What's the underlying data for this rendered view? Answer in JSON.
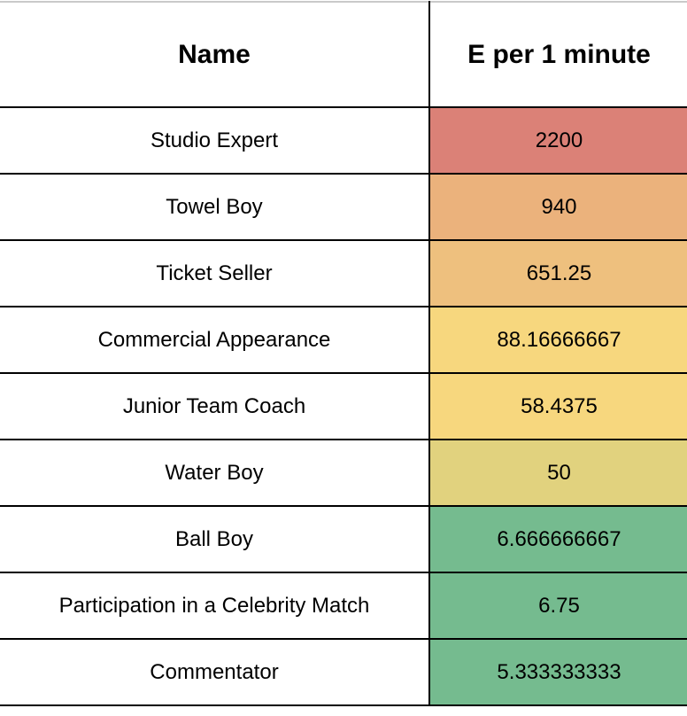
{
  "table": {
    "headers": {
      "name": "Name",
      "value": "E per 1 minute"
    },
    "rows": [
      {
        "name": "Studio Expert",
        "value": "2200",
        "color": "#db8177"
      },
      {
        "name": "Towel Boy",
        "value": "940",
        "color": "#ebb27c"
      },
      {
        "name": "Ticket Seller",
        "value": "651.25",
        "color": "#eec07e"
      },
      {
        "name": "Commercial Appearance",
        "value": "88.16666667",
        "color": "#f7d77e"
      },
      {
        "name": "Junior Team Coach",
        "value": "58.4375",
        "color": "#f7d77e"
      },
      {
        "name": "Water Boy",
        "value": "50",
        "color": "#e1d27e"
      },
      {
        "name": "Ball Boy",
        "value": "6.666666667",
        "color": "#75bb8f"
      },
      {
        "name": "Participation in a Celebrity Match",
        "value": "6.75",
        "color": "#75bb8f"
      },
      {
        "name": "Commentator",
        "value": "5.333333333",
        "color": "#75bb8f"
      }
    ]
  }
}
